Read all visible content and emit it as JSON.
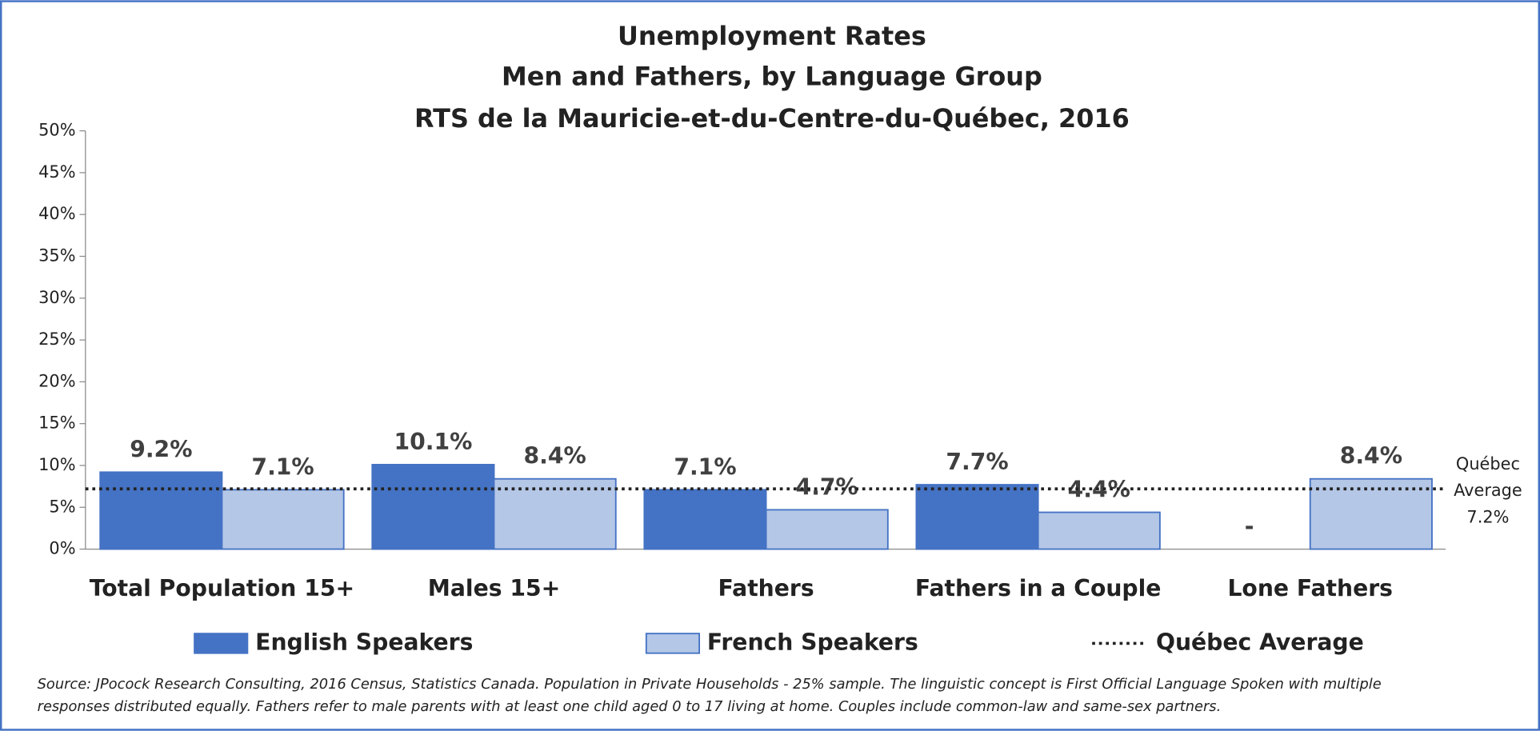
{
  "chart_data": {
    "type": "bar",
    "title": [
      "Unemployment Rates",
      "Men and Fathers, by Language Group",
      "RTS de la Mauricie-et-du-Centre-du-Québec, 2016"
    ],
    "categories": [
      "Total Population 15+",
      "Males 15+",
      "Fathers",
      "Fathers in a Couple",
      "Lone Fathers"
    ],
    "series": [
      {
        "name": "English Speakers",
        "color": "#4472c4",
        "values": [
          9.2,
          10.1,
          7.1,
          7.7,
          null
        ],
        "value_labels": [
          "9.2%",
          "10.1%",
          "7.1%",
          "7.7%",
          "-"
        ]
      },
      {
        "name": "French Speakers",
        "color": "#b4c7e7",
        "values": [
          7.1,
          8.4,
          4.7,
          4.4,
          8.4
        ],
        "value_labels": [
          "7.1%",
          "8.4%",
          "4.7%",
          "4.4%",
          "8.4%"
        ]
      }
    ],
    "reference_line": {
      "name": "Québec Average",
      "value": 7.2,
      "annotation": [
        "Québec",
        "Average",
        "7.2%"
      ]
    },
    "ylim": [
      0,
      50
    ],
    "yticks": [
      {
        "value": 0,
        "label": "0%"
      },
      {
        "value": 5,
        "label": "5%"
      },
      {
        "value": 10,
        "label": "10%"
      },
      {
        "value": 15,
        "label": "15%"
      },
      {
        "value": 20,
        "label": "20%"
      },
      {
        "value": 25,
        "label": "25%"
      },
      {
        "value": 30,
        "label": "30%"
      },
      {
        "value": 35,
        "label": "35%"
      },
      {
        "value": 40,
        "label": "40%"
      },
      {
        "value": 45,
        "label": "45%"
      },
      {
        "value": 50,
        "label": "50%"
      }
    ],
    "source": [
      "Source: JPocock Research Consulting, 2016 Census, Statistics Canada. Population in Private Households - 25% sample. The linguistic concept is First Official Language Spoken with multiple",
      "responses distributed equally. Fathers refer to male parents with at least one child aged 0 to 17 living at home. Couples include common-law and same-sex partners."
    ]
  }
}
